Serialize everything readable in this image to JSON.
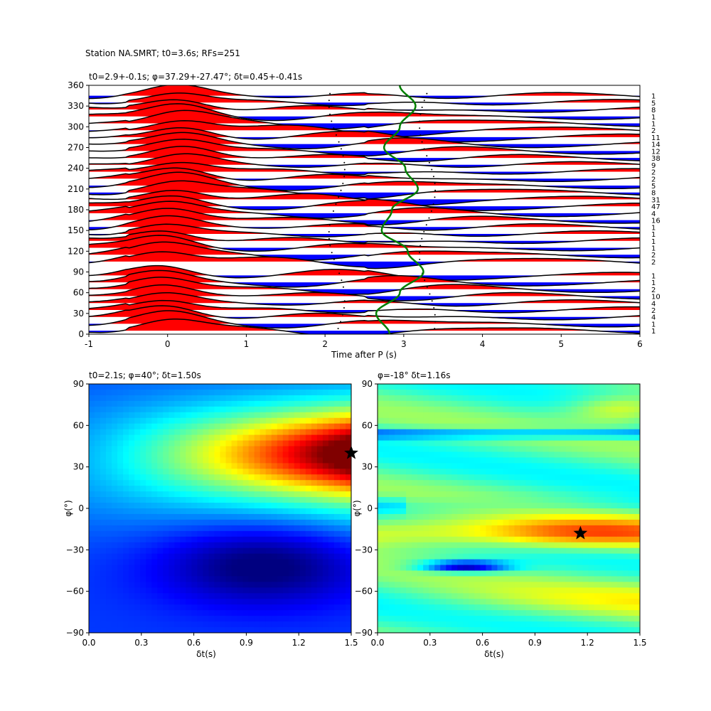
{
  "figure": {
    "suptitle": "Station NA.SMRT; t0=3.6s; RFs=251"
  },
  "chart_data": [
    {
      "type": "line",
      "panel": "receiver-function-traces",
      "title": "t0=2.9+-0.1s; φ=37.29+-27.47°; δt=0.45+-0.41s",
      "xlabel": "Time after P (s)",
      "ylabel": "",
      "xlim": [
        -1,
        6
      ],
      "ylim": [
        0,
        360
      ],
      "xticks": [
        "-1",
        "0",
        "1",
        "2",
        "3",
        "4",
        "5",
        "6"
      ],
      "yticks": [
        "0",
        "30",
        "60",
        "90",
        "120",
        "150",
        "180",
        "210",
        "240",
        "270",
        "300",
        "330",
        "360"
      ],
      "fill_positive_color": "#ff0000",
      "fill_negative_color": "#0000ff",
      "curve_color": "#007f00",
      "backazimuths": [
        5,
        15,
        25,
        35,
        45,
        55,
        65,
        75,
        85,
        105,
        115,
        125,
        135,
        145,
        155,
        165,
        175,
        185,
        195,
        205,
        215,
        225,
        235,
        245,
        255,
        265,
        275,
        285,
        295,
        305,
        315,
        325,
        335,
        345
      ],
      "rf_counts": [
        "1",
        "1",
        "4",
        "2",
        "4",
        "10",
        "2",
        "1",
        "1",
        "2",
        "2",
        "1",
        "1",
        "1",
        "1",
        "16",
        "4",
        "47",
        "31",
        "8",
        "5",
        "2",
        "2",
        "9",
        "38",
        "12",
        "14",
        "11",
        "2",
        "1",
        "1",
        "8",
        "5",
        "1"
      ],
      "predicted_t0_curve": {
        "description_free": true,
        "baz": [
          0,
          30,
          60,
          90,
          120,
          150,
          180,
          210,
          240,
          270,
          300,
          330,
          360
        ],
        "t": [
          2.82,
          2.65,
          2.95,
          3.25,
          3.05,
          2.72,
          2.85,
          3.18,
          3.02,
          2.75,
          2.95,
          3.15,
          2.95
        ]
      }
    },
    {
      "type": "heatmap",
      "panel": "splitting-grid-search-1",
      "title": "t0=2.1s; φ=40°; δt=1.50s",
      "xlabel": "δt(s)",
      "ylabel": "φ(°)",
      "xlim": [
        0,
        1.5
      ],
      "ylim": [
        -90,
        90
      ],
      "xticks": [
        "0.0",
        "0.3",
        "0.6",
        "0.9",
        "1.2",
        "1.5"
      ],
      "yticks": [
        "−90",
        "−60",
        "−30",
        "0",
        "30",
        "60",
        "90"
      ],
      "best": {
        "dt": 1.5,
        "phi": 40
      }
    },
    {
      "type": "heatmap",
      "panel": "splitting-grid-search-2",
      "title": "φ=-18° δt=1.16s",
      "xlabel": "δt(s)",
      "ylabel": "φ(°)",
      "xlim": [
        0,
        1.5
      ],
      "ylim": [
        -90,
        90
      ],
      "xticks": [
        "0.0",
        "0.3",
        "0.6",
        "0.9",
        "1.2",
        "1.5"
      ],
      "yticks": [
        "−90",
        "−60",
        "−30",
        "0",
        "30",
        "60",
        "90"
      ],
      "best": {
        "dt": 1.16,
        "phi": -18
      }
    }
  ]
}
